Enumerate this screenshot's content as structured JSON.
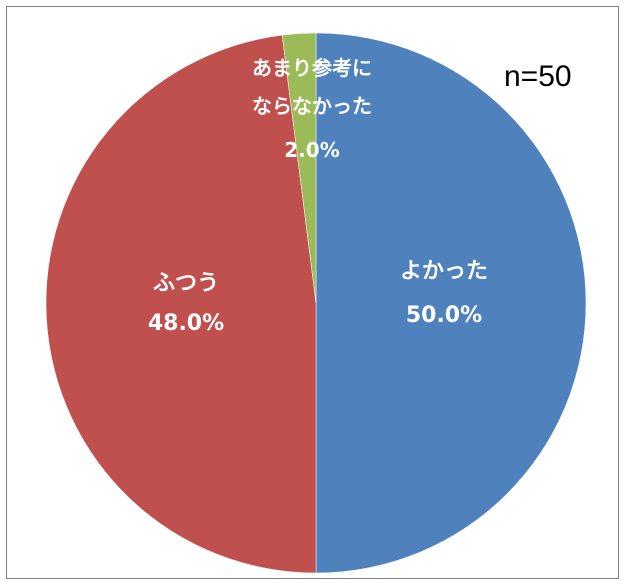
{
  "chart_data": {
    "type": "pie",
    "annotation": "n=50",
    "slices": [
      {
        "label": "よかった",
        "value": 50.0,
        "value_label": "50.0%",
        "color": "#4f81bd"
      },
      {
        "label": "ふつう",
        "value": 48.0,
        "value_label": "48.0%",
        "color": "#c0504d"
      },
      {
        "label": "あまり参考に\nならなかった",
        "value": 2.0,
        "value_label": "2.0%",
        "color": "#9bbb59"
      }
    ],
    "start": "12 o'clock",
    "direction": "clockwise",
    "legend": "none"
  }
}
